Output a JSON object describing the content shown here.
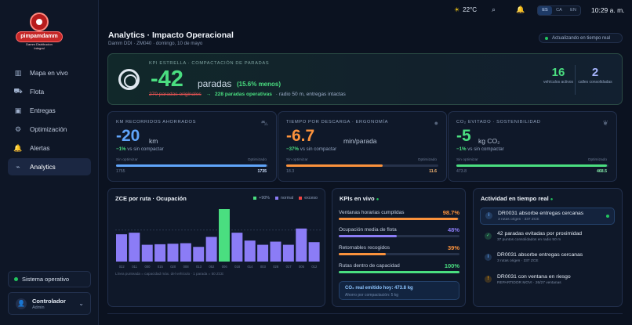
{
  "brand": {
    "name": "pimpamdamm",
    "subtitle": "Damm Distribucion Integral"
  },
  "sidebar": {
    "items": [
      {
        "label": "Mapa en vivo",
        "icon": "map-icon",
        "glyph": "▥"
      },
      {
        "label": "Flota",
        "icon": "truck-icon",
        "glyph": "⛟"
      },
      {
        "label": "Entregas",
        "icon": "box-icon",
        "glyph": "▣"
      },
      {
        "label": "Optimización",
        "icon": "gear-icon",
        "glyph": "⚙"
      },
      {
        "label": "Alertas",
        "icon": "bell-icon",
        "glyph": "🔔"
      },
      {
        "label": "Analytics",
        "icon": "chart-icon",
        "glyph": "⌁"
      }
    ],
    "active_index": 5,
    "system_status": "Sistema operativo",
    "user": {
      "name": "Controlador",
      "role": "Admin"
    }
  },
  "topbar": {
    "temperature": "22°C",
    "languages": [
      "ES",
      "CA",
      "EN"
    ],
    "active_language": "ES",
    "clock": "10:29 a. m."
  },
  "header": {
    "title": "Analytics · Impacto Operacional",
    "subtitle": "Damm DDI · ZM040 · domingo, 10 de mayo",
    "live": "Actualizando en tiempo real"
  },
  "hero": {
    "kicker": "KPI ESTRELLA · COMPACTACIÓN DE PARADAS",
    "value": "-42",
    "unit": "paradas",
    "pct": "(15.6% menos)",
    "original": "270 paradas originales",
    "arrow": "→",
    "operative": "228 paradas operativas",
    "note": "· radio 50 m, entregas intactas",
    "stats": [
      {
        "value": "16",
        "label": "vehículos activos",
        "color": "#4ade80"
      },
      {
        "value": "2",
        "label": "calles consolidadas",
        "color": "#a5b4fc"
      }
    ]
  },
  "metrics": [
    {
      "kicker": "KM RECORRIDOS AHORRADOS",
      "value": "-20",
      "unit": "km",
      "delta": "−1%",
      "delta_text": "vs sin compactar",
      "left_label": "Sin optimizar",
      "right_label": "Optimizado",
      "left_num": "1755",
      "right_num": "1735",
      "ratio": 0.988,
      "color": "#60a5fa",
      "num_color": "#cfe1ff",
      "icon": "road-icon",
      "glyph": "⛍"
    },
    {
      "kicker": "TIEMPO POR DESCARGA · ERGONOMÍA",
      "value": "-6.7",
      "unit": "min/parada",
      "delta": "−37%",
      "delta_text": "vs sin compactar",
      "left_label": "Sin optimizar",
      "right_label": "Optimizado",
      "left_num": "18.3",
      "right_num": "11.6",
      "ratio": 0.634,
      "color": "#fb923c",
      "num_color": "#fdba74",
      "icon": "clock-icon",
      "glyph": "●"
    },
    {
      "kicker": "CO₂ EVITADO · SOSTENIBILIDAD",
      "value": "-5",
      "unit": "kg CO₂",
      "delta": "−1%",
      "delta_text": "vs sin compactar",
      "left_label": "Sin optimizar",
      "right_label": "Optimizado",
      "left_num": "473.8",
      "right_num": "468.5",
      "ratio": 0.989,
      "color": "#4ade80",
      "num_color": "#86efac",
      "icon": "leaf-icon",
      "glyph": "❦"
    }
  ],
  "chart_data": {
    "type": "bar",
    "title": "ZCE por ruta · Ocupación",
    "legend": [
      {
        "label": "+90%",
        "color": "#4ade80"
      },
      {
        "label": "normal",
        "color": "#8b7cf6"
      },
      {
        "label": "exceso",
        "color": "#ef4444"
      }
    ],
    "categories": [
      "022",
      "011",
      "000",
      "015",
      "020",
      "008",
      "013",
      "052",
      "006",
      "018",
      "014",
      "003",
      "028",
      "017",
      "005",
      "012"
    ],
    "values": [
      52,
      55,
      32,
      33,
      34,
      35,
      28,
      47,
      100,
      55,
      40,
      32,
      38,
      32,
      63,
      37
    ],
    "highlight_index": 8,
    "ylim": [
      0,
      100
    ],
    "note": "Línea punteada = capacidad máx. del vehículo · 1 parada = 50 ZCE"
  },
  "kpis_live": {
    "title": "KPIs en vivo",
    "items": [
      {
        "label": "Ventanas horarias cumplidas",
        "pct": "98.7%",
        "value": 98.7,
        "color": "#fb923c"
      },
      {
        "label": "Ocupación media de flota",
        "pct": "48%",
        "value": 48,
        "color": "#8b7cf6"
      },
      {
        "label": "Retornables recogidos",
        "pct": "39%",
        "value": 39,
        "color": "#fb923c"
      },
      {
        "label": "Rutas dentro de capacidad",
        "pct": "100%",
        "value": 100,
        "color": "#4ade80"
      }
    ],
    "co2": {
      "title": "CO₂ real emitido hoy: 473.8 kg",
      "sub": "Ahorro por compactación: 5 kg"
    }
  },
  "activity": {
    "title": "Actividad en tiempo real",
    "items": [
      {
        "title": "DR0031 absorbe entregas cercanas",
        "sub": "3 rutas origen · 337 ZCE",
        "icon": "info-icon",
        "glyph": "i",
        "color": "#60a5fa",
        "highlight": true
      },
      {
        "title": "42 paradas evitadas por proximidad",
        "sub": "37 puntos consolidados en radio 50 m",
        "icon": "check-icon",
        "glyph": "✓",
        "color": "#4ade80",
        "highlight": false
      },
      {
        "title": "DR0031 absorbe entregas cercanas",
        "sub": "3 rutas origen · 337 ZCE",
        "icon": "info-icon",
        "glyph": "i",
        "color": "#60a5fa",
        "highlight": false
      },
      {
        "title": "DR0031 con ventana en riesgo",
        "sub": "REPARTIDOR MOVI · 26/27 ventanas",
        "icon": "warning-icon",
        "glyph": "!",
        "color": "#f59e0b",
        "highlight": false
      }
    ]
  }
}
